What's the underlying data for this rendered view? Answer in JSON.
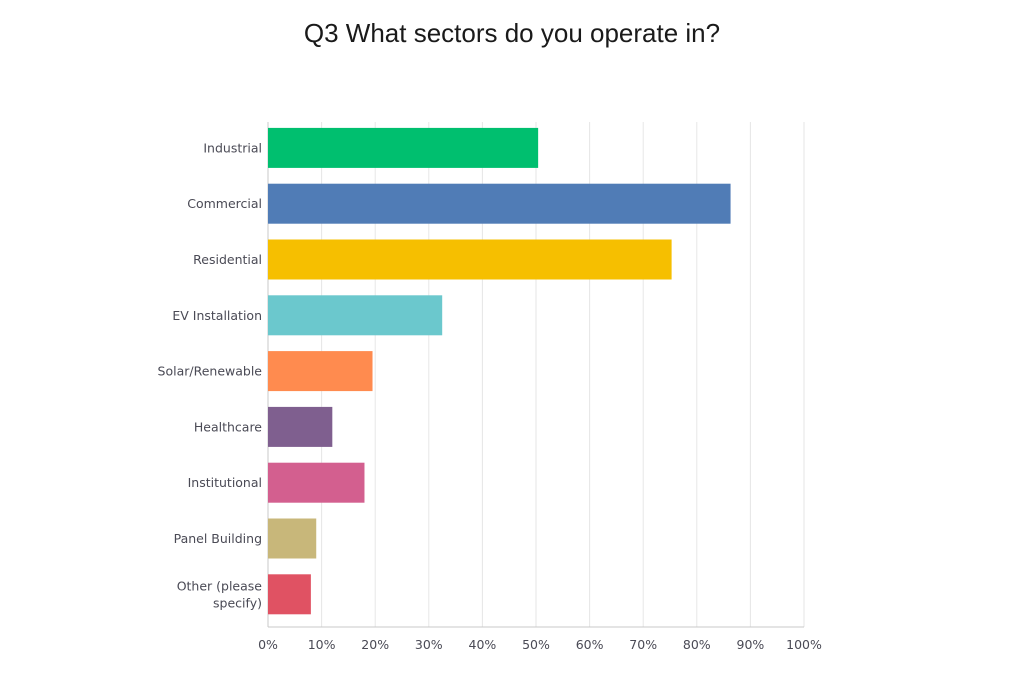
{
  "chart_data": {
    "type": "bar",
    "orientation": "horizontal",
    "title": "Q3 What sectors do you operate in?",
    "categories": [
      [
        "Industrial"
      ],
      [
        "Commercial"
      ],
      [
        "Residential"
      ],
      [
        "EV Installation"
      ],
      [
        "Solar/Renewable"
      ],
      [
        "Healthcare"
      ],
      [
        "Institutional"
      ],
      [
        "Panel Building"
      ],
      [
        "Other (please",
        "specify)"
      ]
    ],
    "values": [
      50.4,
      86.3,
      75.3,
      32.5,
      19.5,
      12.0,
      18.0,
      9.0,
      8.0
    ],
    "colors": [
      "#00bf6f",
      "#507cb6",
      "#f6bf00",
      "#6bc8cd",
      "#ff8b4f",
      "#7f5f8f",
      "#d35f8f",
      "#c8b77a",
      "#e05263"
    ],
    "xlim": [
      0,
      100
    ],
    "xticks": [
      "0%",
      "10%",
      "20%",
      "30%",
      "40%",
      "50%",
      "60%",
      "70%",
      "80%",
      "90%",
      "100%"
    ],
    "grid": true
  }
}
